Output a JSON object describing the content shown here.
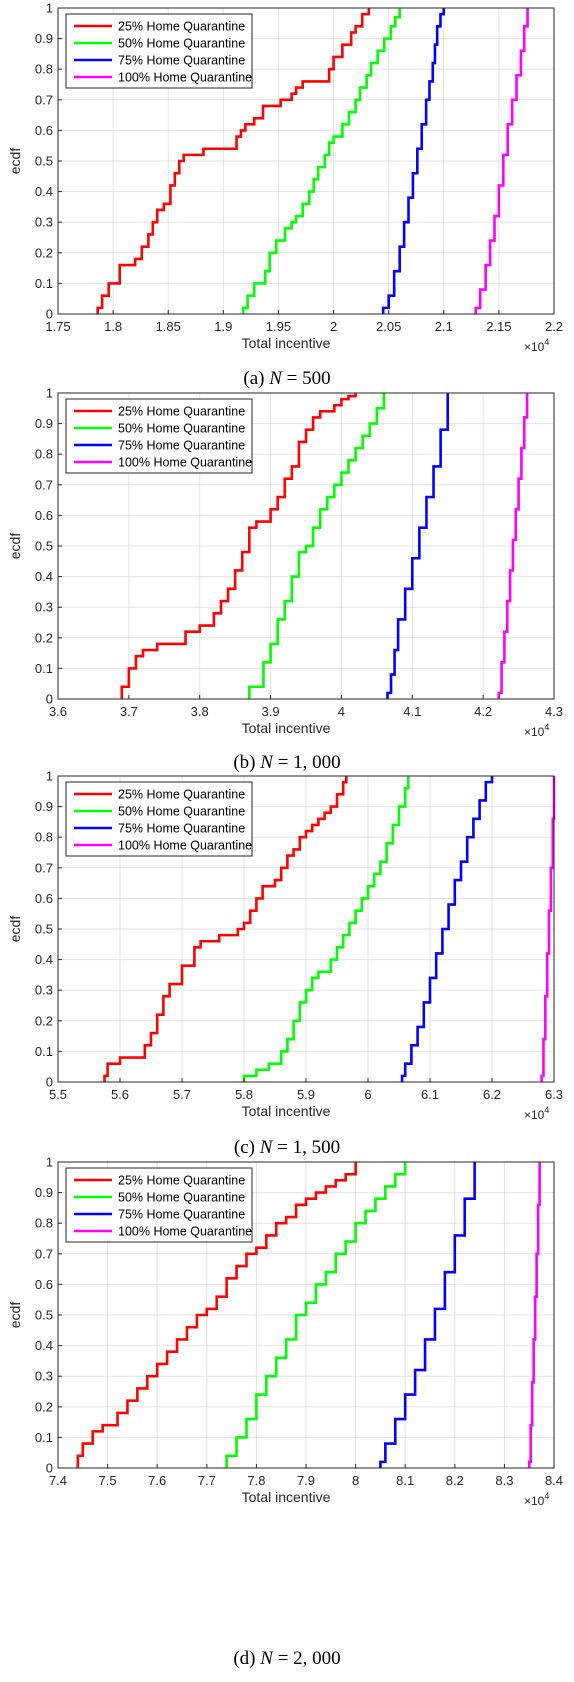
{
  "series_style": [
    {
      "name": "25% Home Quarantine",
      "color": "#ff0000"
    },
    {
      "name": "50% Home Quarantine",
      "color": "#00ff00"
    },
    {
      "name": "75% Home Quarantine",
      "color": "#0000ff"
    },
    {
      "name": "100% Home Quarantine",
      "color": "#ff00ff"
    }
  ],
  "chart_data": [
    {
      "type": "line",
      "caption": {
        "label": "(a)",
        "n": "N",
        "eq": "= 500"
      },
      "xlabel": "Total incentive",
      "ylabel": "ecdf",
      "x_exponent_label": "×10",
      "x_exponent_power": "4",
      "xlim": [
        1.75,
        2.2
      ],
      "ylim": [
        0,
        1
      ],
      "xticks": [
        "1.75",
        "1.8",
        "1.85",
        "1.9",
        "1.95",
        "2",
        "2.05",
        "2.1",
        "2.15",
        "2.2"
      ],
      "xtick_values": [
        1.75,
        1.8,
        1.85,
        1.9,
        1.95,
        2.0,
        2.05,
        2.1,
        2.15,
        2.2
      ],
      "yticks": [
        "0",
        "0.1",
        "0.2",
        "0.3",
        "0.4",
        "0.5",
        "0.6",
        "0.7",
        "0.8",
        "0.9",
        "1"
      ],
      "grid": true,
      "legend_position": "top-left",
      "series": [
        {
          "name": "25% Home Quarantine",
          "x": [
            1.786,
            1.79,
            1.796,
            1.806,
            1.82,
            1.826,
            1.832,
            1.836,
            1.84,
            1.846,
            1.852,
            1.856,
            1.86,
            1.864,
            1.882,
            1.9,
            1.912,
            1.916,
            1.92,
            1.928,
            1.936,
            1.942,
            1.952,
            1.962,
            1.966,
            1.972,
            1.996,
            2.0,
            2.008,
            2.016,
            2.02,
            2.026,
            2.032
          ],
          "y": [
            0.02,
            0.06,
            0.1,
            0.16,
            0.18,
            0.22,
            0.26,
            0.3,
            0.34,
            0.36,
            0.42,
            0.46,
            0.5,
            0.52,
            0.54,
            0.54,
            0.58,
            0.6,
            0.62,
            0.64,
            0.68,
            0.68,
            0.7,
            0.72,
            0.74,
            0.76,
            0.8,
            0.84,
            0.88,
            0.92,
            0.94,
            0.98,
            1.0
          ]
        },
        {
          "name": "50% Home Quarantine",
          "x": [
            1.918,
            1.922,
            1.928,
            1.938,
            1.942,
            1.948,
            1.956,
            1.962,
            1.966,
            1.972,
            1.978,
            1.982,
            1.986,
            1.992,
            1.996,
            2.0,
            2.008,
            2.014,
            2.02,
            2.024,
            2.03,
            2.034,
            2.04,
            2.046,
            2.052,
            2.056,
            2.06
          ],
          "y": [
            0.02,
            0.06,
            0.1,
            0.14,
            0.2,
            0.24,
            0.28,
            0.3,
            0.32,
            0.36,
            0.4,
            0.44,
            0.48,
            0.52,
            0.56,
            0.58,
            0.62,
            0.66,
            0.7,
            0.74,
            0.78,
            0.82,
            0.86,
            0.9,
            0.94,
            0.97,
            1.0
          ]
        },
        {
          "name": "75% Home Quarantine",
          "x": [
            2.045,
            2.05,
            2.055,
            2.06,
            2.064,
            2.068,
            2.072,
            2.076,
            2.08,
            2.084,
            2.087,
            2.09,
            2.092,
            2.094,
            2.097,
            2.1
          ],
          "y": [
            0.02,
            0.06,
            0.14,
            0.22,
            0.3,
            0.38,
            0.46,
            0.54,
            0.62,
            0.7,
            0.76,
            0.82,
            0.88,
            0.94,
            0.98,
            1.0
          ]
        },
        {
          "name": "100% Home Quarantine",
          "x": [
            2.129,
            2.133,
            2.138,
            2.142,
            2.146,
            2.15,
            2.154,
            2.158,
            2.162,
            2.166,
            2.17,
            2.173,
            2.176
          ],
          "y": [
            0.02,
            0.08,
            0.16,
            0.24,
            0.32,
            0.42,
            0.52,
            0.62,
            0.7,
            0.78,
            0.86,
            0.94,
            1.0
          ]
        }
      ]
    },
    {
      "type": "line",
      "caption": {
        "label": "(b)",
        "n": "N",
        "eq": "= 1, 000"
      },
      "xlabel": "Total incentive",
      "ylabel": "ecdf",
      "x_exponent_label": "×10",
      "x_exponent_power": "4",
      "xlim": [
        3.6,
        4.3
      ],
      "ylim": [
        0,
        1
      ],
      "xticks": [
        "3.6",
        "3.7",
        "3.8",
        "3.9",
        "4",
        "4.1",
        "4.2",
        "4.3"
      ],
      "xtick_values": [
        3.6,
        3.7,
        3.8,
        3.9,
        4.0,
        4.1,
        4.2,
        4.3
      ],
      "yticks": [
        "0",
        "0.1",
        "0.2",
        "0.3",
        "0.4",
        "0.5",
        "0.6",
        "0.7",
        "0.8",
        "0.9",
        "1"
      ],
      "grid": true,
      "legend_position": "top-left",
      "series": [
        {
          "name": "25% Home Quarantine",
          "x": [
            3.69,
            3.7,
            3.71,
            3.72,
            3.74,
            3.78,
            3.8,
            3.82,
            3.83,
            3.84,
            3.85,
            3.86,
            3.87,
            3.88,
            3.9,
            3.91,
            3.92,
            3.93,
            3.94,
            3.95,
            3.96,
            3.97,
            3.99,
            4.0,
            4.01,
            4.02
          ],
          "y": [
            0.04,
            0.1,
            0.14,
            0.16,
            0.18,
            0.22,
            0.24,
            0.28,
            0.32,
            0.36,
            0.42,
            0.48,
            0.56,
            0.58,
            0.62,
            0.66,
            0.72,
            0.76,
            0.84,
            0.88,
            0.92,
            0.94,
            0.96,
            0.98,
            0.99,
            1.0
          ]
        },
        {
          "name": "50% Home Quarantine",
          "x": [
            3.87,
            3.89,
            3.9,
            3.91,
            3.92,
            3.93,
            3.94,
            3.95,
            3.96,
            3.97,
            3.98,
            3.99,
            4.0,
            4.01,
            4.02,
            4.03,
            4.04,
            4.05,
            4.06
          ],
          "y": [
            0.04,
            0.12,
            0.18,
            0.26,
            0.32,
            0.4,
            0.48,
            0.5,
            0.56,
            0.62,
            0.66,
            0.7,
            0.74,
            0.78,
            0.82,
            0.86,
            0.9,
            0.95,
            1.0
          ]
        },
        {
          "name": "75% Home Quarantine",
          "x": [
            4.065,
            4.07,
            4.075,
            4.08,
            4.09,
            4.1,
            4.11,
            4.12,
            4.13,
            4.14,
            4.15
          ],
          "y": [
            0.02,
            0.08,
            0.16,
            0.26,
            0.36,
            0.46,
            0.56,
            0.66,
            0.76,
            0.88,
            1.0
          ]
        },
        {
          "name": "100% Home Quarantine",
          "x": [
            4.222,
            4.226,
            4.23,
            4.234,
            4.238,
            4.242,
            4.246,
            4.25,
            4.254,
            4.258,
            4.262
          ],
          "y": [
            0.02,
            0.12,
            0.22,
            0.32,
            0.42,
            0.52,
            0.62,
            0.72,
            0.82,
            0.92,
            1.0
          ]
        }
      ]
    },
    {
      "type": "line",
      "caption": {
        "label": "(c)",
        "n": "N",
        "eq": "= 1, 500"
      },
      "xlabel": "Total incentive",
      "ylabel": "ecdf",
      "x_exponent_label": "×10",
      "x_exponent_power": "4",
      "xlim": [
        5.5,
        6.3
      ],
      "ylim": [
        0,
        1
      ],
      "xticks": [
        "5.5",
        "5.6",
        "5.7",
        "5.8",
        "5.9",
        "6",
        "6.1",
        "6.2",
        "6.3"
      ],
      "xtick_values": [
        5.5,
        5.6,
        5.7,
        5.8,
        5.9,
        6.0,
        6.1,
        6.2,
        6.3
      ],
      "yticks": [
        "0",
        "0.1",
        "0.2",
        "0.3",
        "0.4",
        "0.5",
        "0.6",
        "0.7",
        "0.8",
        "0.9",
        "1"
      ],
      "grid": true,
      "legend_position": "top-left",
      "series": [
        {
          "name": "25% Home Quarantine",
          "x": [
            5.575,
            5.58,
            5.6,
            5.64,
            5.65,
            5.66,
            5.67,
            5.68,
            5.7,
            5.72,
            5.73,
            5.76,
            5.78,
            5.79,
            5.8,
            5.81,
            5.82,
            5.83,
            5.85,
            5.86,
            5.87,
            5.88,
            5.89,
            5.9,
            5.91,
            5.92,
            5.93,
            5.94,
            5.95,
            5.96,
            5.965
          ],
          "y": [
            0.02,
            0.06,
            0.08,
            0.12,
            0.16,
            0.22,
            0.28,
            0.32,
            0.38,
            0.44,
            0.46,
            0.48,
            0.48,
            0.5,
            0.52,
            0.56,
            0.6,
            0.64,
            0.66,
            0.7,
            0.74,
            0.76,
            0.8,
            0.82,
            0.84,
            0.86,
            0.88,
            0.9,
            0.94,
            0.98,
            1.0
          ]
        },
        {
          "name": "50% Home Quarantine",
          "x": [
            5.8,
            5.82,
            5.84,
            5.86,
            5.87,
            5.88,
            5.89,
            5.9,
            5.91,
            5.92,
            5.94,
            5.95,
            5.96,
            5.97,
            5.98,
            5.99,
            6.0,
            6.01,
            6.02,
            6.03,
            6.04,
            6.05,
            6.06,
            6.065
          ],
          "y": [
            0.02,
            0.04,
            0.06,
            0.1,
            0.14,
            0.2,
            0.26,
            0.3,
            0.34,
            0.36,
            0.4,
            0.44,
            0.48,
            0.52,
            0.56,
            0.6,
            0.64,
            0.68,
            0.72,
            0.78,
            0.84,
            0.9,
            0.96,
            1.0
          ]
        },
        {
          "name": "75% Home Quarantine",
          "x": [
            6.055,
            6.06,
            6.07,
            6.08,
            6.09,
            6.1,
            6.11,
            6.12,
            6.13,
            6.14,
            6.15,
            6.16,
            6.17,
            6.18,
            6.19,
            6.2
          ],
          "y": [
            0.02,
            0.06,
            0.12,
            0.18,
            0.26,
            0.34,
            0.42,
            0.5,
            0.58,
            0.66,
            0.72,
            0.8,
            0.86,
            0.92,
            0.98,
            1.0
          ]
        },
        {
          "name": "100% Home Quarantine",
          "x": [
            6.28,
            6.283,
            6.286,
            6.289,
            6.292,
            6.295,
            6.298,
            6.3
          ],
          "y": [
            0.02,
            0.14,
            0.28,
            0.42,
            0.56,
            0.7,
            0.86,
            1.0
          ]
        }
      ]
    },
    {
      "type": "line",
      "caption": {
        "label": "(d)",
        "n": "N",
        "eq": "= 2, 000"
      },
      "xlabel": "Total incentive",
      "ylabel": "ecdf",
      "x_exponent_label": "×10",
      "x_exponent_power": "4",
      "xlim": [
        7.4,
        8.4
      ],
      "ylim": [
        0,
        1
      ],
      "xticks": [
        "7.4",
        "7.5",
        "7.6",
        "7.7",
        "7.8",
        "7.9",
        "8",
        "8.1",
        "8.2",
        "8.3",
        "8.4"
      ],
      "xtick_values": [
        7.4,
        7.5,
        7.6,
        7.7,
        7.8,
        7.9,
        8.0,
        8.1,
        8.2,
        8.3,
        8.4
      ],
      "yticks": [
        "0",
        "0.1",
        "0.2",
        "0.3",
        "0.4",
        "0.5",
        "0.6",
        "0.7",
        "0.8",
        "0.9",
        "1"
      ],
      "grid": true,
      "legend_position": "top-left",
      "series": [
        {
          "name": "25% Home Quarantine",
          "x": [
            7.44,
            7.45,
            7.47,
            7.49,
            7.52,
            7.54,
            7.56,
            7.58,
            7.6,
            7.62,
            7.64,
            7.66,
            7.68,
            7.7,
            7.72,
            7.74,
            7.76,
            7.78,
            7.8,
            7.82,
            7.84,
            7.86,
            7.88,
            7.9,
            7.92,
            7.94,
            7.96,
            7.98,
            8.0
          ],
          "y": [
            0.04,
            0.08,
            0.12,
            0.14,
            0.18,
            0.22,
            0.26,
            0.3,
            0.34,
            0.38,
            0.42,
            0.46,
            0.5,
            0.52,
            0.56,
            0.62,
            0.66,
            0.7,
            0.72,
            0.76,
            0.8,
            0.82,
            0.86,
            0.88,
            0.9,
            0.92,
            0.94,
            0.96,
            1.0
          ]
        },
        {
          "name": "50% Home Quarantine",
          "x": [
            7.74,
            7.76,
            7.78,
            7.8,
            7.82,
            7.84,
            7.86,
            7.88,
            7.9,
            7.92,
            7.94,
            7.96,
            7.98,
            8.0,
            8.02,
            8.04,
            8.06,
            8.08,
            8.1
          ],
          "y": [
            0.04,
            0.1,
            0.16,
            0.24,
            0.3,
            0.36,
            0.42,
            0.5,
            0.54,
            0.6,
            0.64,
            0.7,
            0.74,
            0.8,
            0.84,
            0.88,
            0.92,
            0.96,
            1.0
          ]
        },
        {
          "name": "75% Home Quarantine",
          "x": [
            8.05,
            8.06,
            8.08,
            8.1,
            8.12,
            8.14,
            8.16,
            8.18,
            8.2,
            8.22,
            8.24
          ],
          "y": [
            0.02,
            0.08,
            0.16,
            0.24,
            0.32,
            0.42,
            0.52,
            0.64,
            0.76,
            0.88,
            1.0
          ]
        },
        {
          "name": "100% Home Quarantine",
          "x": [
            8.35,
            8.353,
            8.356,
            8.359,
            8.362,
            8.365,
            8.368,
            8.371
          ],
          "y": [
            0.02,
            0.14,
            0.28,
            0.42,
            0.56,
            0.7,
            0.86,
            1.0
          ]
        }
      ]
    }
  ]
}
